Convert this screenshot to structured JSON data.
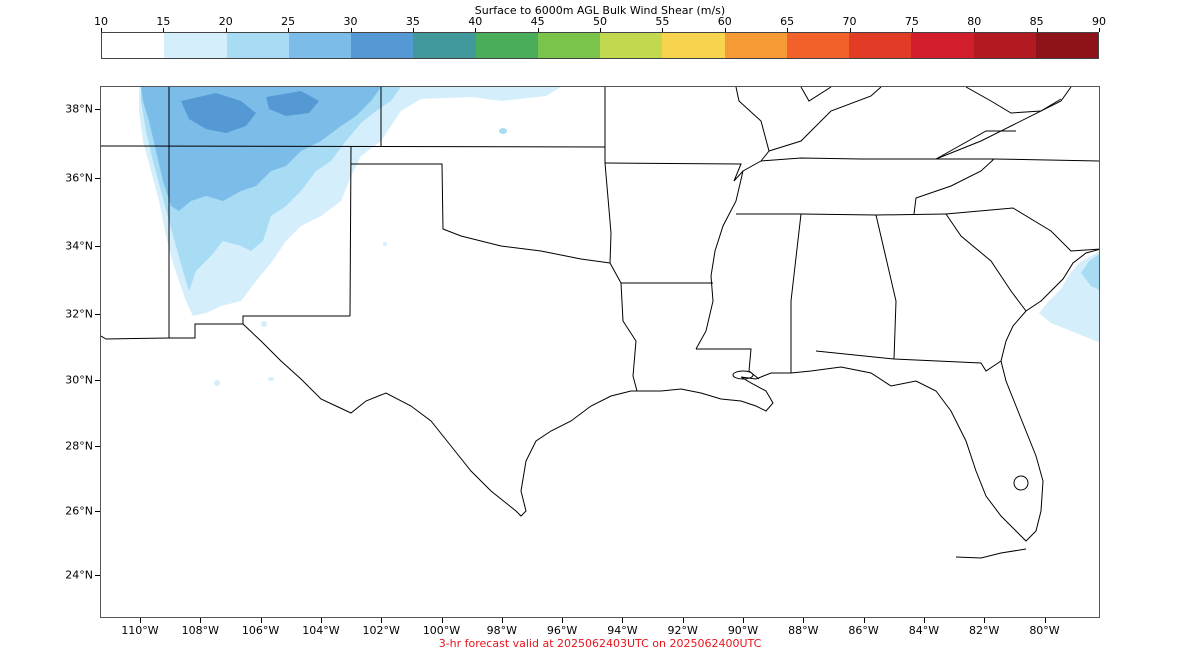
{
  "colorbar": {
    "title": "Surface to 6000m AGL Bulk Wind Shear (m/s)",
    "ticks": [
      "10",
      "15",
      "20",
      "25",
      "30",
      "35",
      "40",
      "45",
      "50",
      "55",
      "60",
      "65",
      "70",
      "75",
      "80",
      "85",
      "90"
    ],
    "colors": [
      "#ffffff",
      "#d4eefb",
      "#a8dcf5",
      "#7cbce8",
      "#5599d4",
      "#42999b",
      "#49ad5a",
      "#7ac44b",
      "#c2d94f",
      "#f8d44e",
      "#f59a34",
      "#f2612a",
      "#e23c27",
      "#d21d2a",
      "#b11a20",
      "#8d1319"
    ]
  },
  "map": {
    "lat_labels": [
      "38°N",
      "36°N",
      "34°N",
      "32°N",
      "30°N",
      "28°N",
      "26°N",
      "24°N"
    ],
    "lon_labels": [
      "110°W",
      "108°W",
      "106°W",
      "104°W",
      "102°W",
      "100°W",
      "98°W",
      "96°W",
      "94°W",
      "92°W",
      "90°W",
      "88°W",
      "86°W",
      "84°W",
      "82°W",
      "80°W"
    ],
    "fill_colors": {
      "light": "#d4eefb",
      "medium": "#a8dcf5",
      "dark": "#7cbce8",
      "darkest": "#5599d4"
    },
    "border_color": "#000000"
  },
  "footer": {
    "text": "3-hr forecast valid at 2025062403UTC on 2025062400UTC",
    "color": "#e8141b"
  }
}
